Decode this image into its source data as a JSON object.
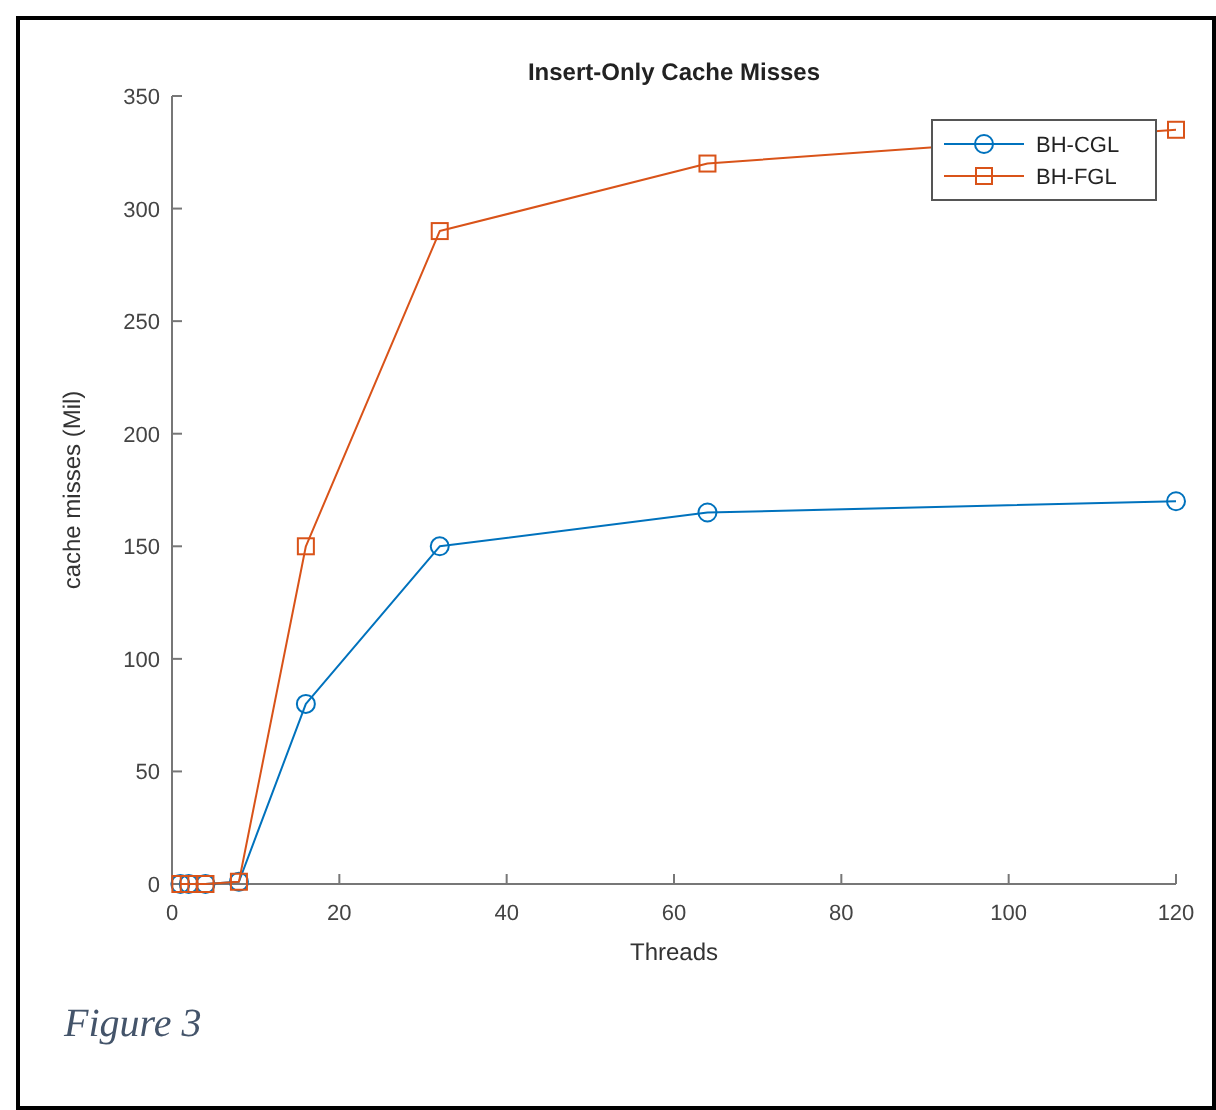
{
  "chart_data": {
    "type": "line",
    "title": "Insert-Only Cache Misses",
    "xlabel": "Threads",
    "ylabel": "cache misses (Mil)",
    "annotations": [
      "Figure 3"
    ],
    "x": [
      1,
      2,
      4,
      8,
      16,
      32,
      64,
      120
    ],
    "series": [
      {
        "name": "BH-CGL",
        "color": "#0072bd",
        "marker": "circle",
        "values": [
          0,
          0,
          0,
          1,
          80,
          150,
          165,
          170
        ]
      },
      {
        "name": "BH-FGL",
        "color": "#d95319",
        "marker": "square",
        "values": [
          0,
          0,
          0,
          1,
          150,
          290,
          320,
          335
        ]
      }
    ],
    "xlim": [
      0,
      120
    ],
    "xticks": [
      0,
      20,
      40,
      60,
      80,
      100,
      120
    ],
    "ylim": [
      0,
      350
    ],
    "yticks": [
      0,
      50,
      100,
      150,
      200,
      250,
      300,
      350
    ],
    "grid": false,
    "legend": "top right",
    "line_style": "solid"
  }
}
